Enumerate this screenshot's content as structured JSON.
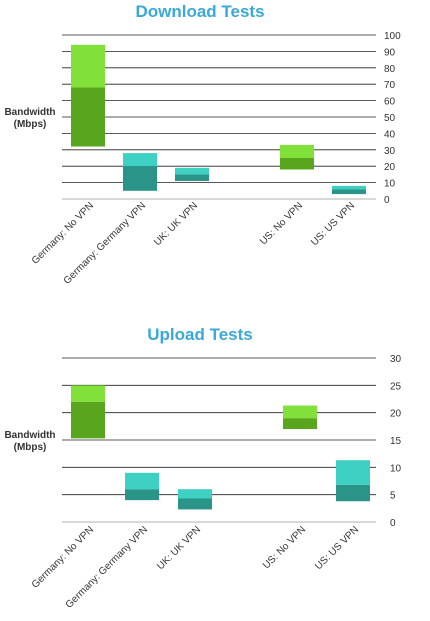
{
  "chart_data": [
    {
      "type": "bar",
      "chart_style": "floating stacked range bars",
      "title": "Download Tests",
      "ylabel": "Bandwidth (Mbps)",
      "ylabel_lines": [
        "Bandwidth",
        "(Mbps)"
      ],
      "ylim": [
        0,
        100
      ],
      "yticks": [
        0,
        10,
        20,
        30,
        40,
        50,
        60,
        70,
        80,
        90,
        100
      ],
      "grid": true,
      "categories": [
        "Germany: No VPN",
        "Germany: Germany VPN",
        "UK: UK VPN",
        "US: No VPN",
        "US: US VPN"
      ],
      "category_slots": [
        0,
        1,
        2,
        4,
        5
      ],
      "bars": [
        {
          "low": 32,
          "mid": 68,
          "high": 94,
          "color_low": "#5aa51e",
          "color_high": "#82e03a"
        },
        {
          "low": 5,
          "mid": 20,
          "high": 28,
          "color_low": "#2a9488",
          "color_high": "#3fd0c4"
        },
        {
          "low": 11,
          "mid": 15,
          "high": 19,
          "color_low": "#2a9488",
          "color_high": "#3fd0c4"
        },
        {
          "low": 18,
          "mid": 25,
          "high": 33,
          "color_low": "#5aa51e",
          "color_high": "#82e03a"
        },
        {
          "low": 3,
          "mid": 6,
          "high": 8,
          "color_low": "#2a9488",
          "color_high": "#3fd0c4"
        }
      ]
    },
    {
      "type": "bar",
      "chart_style": "floating stacked range bars",
      "title": "Upload Tests",
      "ylabel": "Bandwidth (Mbps)",
      "ylabel_lines": [
        "Bandwidth",
        "(Mbps)"
      ],
      "ylim": [
        0,
        30
      ],
      "yticks": [
        0,
        5,
        10,
        15,
        20,
        25,
        30
      ],
      "grid": true,
      "categories": [
        "Germany: No VPN",
        "Germany: Germany VPN",
        "UK: UK VPN",
        "US: No VPN",
        "US: US VPN"
      ],
      "category_slots": [
        0,
        1,
        2,
        4,
        5
      ],
      "bars": [
        {
          "low": 15.3,
          "mid": 22,
          "high": 25,
          "color_low": "#5aa51e",
          "color_high": "#82e03a"
        },
        {
          "low": 4,
          "mid": 6,
          "high": 9,
          "color_low": "#2a9488",
          "color_high": "#3fd0c4"
        },
        {
          "low": 2.3,
          "mid": 4.3,
          "high": 6,
          "color_low": "#2a9488",
          "color_high": "#3fd0c4"
        },
        {
          "low": 17,
          "mid": 19,
          "high": 21.3,
          "color_low": "#5aa51e",
          "color_high": "#82e03a"
        },
        {
          "low": 3.8,
          "mid": 6.8,
          "high": 11.3,
          "color_low": "#2a9488",
          "color_high": "#3fd0c4"
        }
      ]
    }
  ]
}
